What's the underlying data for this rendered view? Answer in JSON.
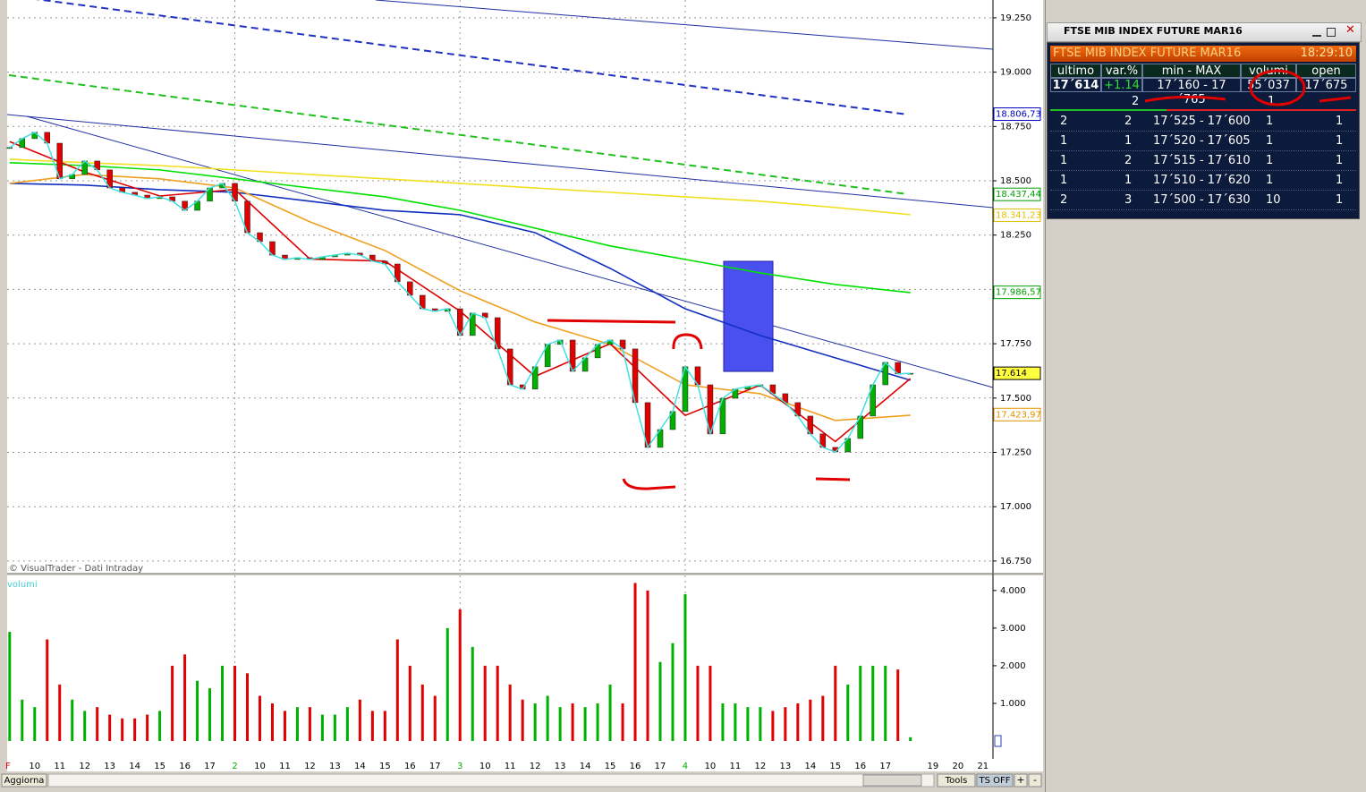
{
  "chart_data": {
    "type": "candlestick",
    "watermark": "© VisualTrader - Dati Intraday",
    "volume_label": "volumi",
    "xlim": [
      -1.1,
      38.3
    ],
    "xticks": [
      {
        "value": -1.07,
        "label": "F",
        "color": "#e00000"
      },
      {
        "value": 0,
        "label": "10"
      },
      {
        "value": 1,
        "label": "11"
      },
      {
        "value": 2,
        "label": "12"
      },
      {
        "value": 3,
        "label": "13"
      },
      {
        "value": 4,
        "label": "14"
      },
      {
        "value": 5,
        "label": "15"
      },
      {
        "value": 6,
        "label": "16"
      },
      {
        "value": 7,
        "label": "17"
      },
      {
        "value": 8,
        "label": "2",
        "color": "#00b000"
      },
      {
        "value": 9,
        "label": "10"
      },
      {
        "value": 10,
        "label": "11"
      },
      {
        "value": 11,
        "label": "12"
      },
      {
        "value": 12,
        "label": "13"
      },
      {
        "value": 13,
        "label": "14"
      },
      {
        "value": 14,
        "label": "15"
      },
      {
        "value": 15,
        "label": "16"
      },
      {
        "value": 16,
        "label": "17"
      },
      {
        "value": 17,
        "label": "3",
        "color": "#00b000"
      },
      {
        "value": 18,
        "label": "10"
      },
      {
        "value": 19,
        "label": "11"
      },
      {
        "value": 20,
        "label": "12"
      },
      {
        "value": 21,
        "label": "13"
      },
      {
        "value": 22,
        "label": "14"
      },
      {
        "value": 23,
        "label": "15"
      },
      {
        "value": 24,
        "label": "16"
      },
      {
        "value": 25,
        "label": "17"
      },
      {
        "value": 26,
        "label": "4",
        "color": "#00b000"
      },
      {
        "value": 27,
        "label": "10"
      },
      {
        "value": 28,
        "label": "11"
      },
      {
        "value": 29,
        "label": "12"
      },
      {
        "value": 30,
        "label": "13"
      },
      {
        "value": 31,
        "label": "14"
      },
      {
        "value": 32,
        "label": "15"
      },
      {
        "value": 33,
        "label": "16"
      },
      {
        "value": 34,
        "label": "17"
      },
      {
        "value": 35.9,
        "label": "19"
      },
      {
        "value": 36.9,
        "label": "20"
      },
      {
        "value": 37.9,
        "label": "21"
      }
    ],
    "ylim": [
      16696,
      19332
    ],
    "yticks": [
      {
        "value": 19250,
        "label": "19.250"
      },
      {
        "value": 19000,
        "label": "19.000"
      },
      {
        "value": 18750,
        "label": "18.750"
      },
      {
        "value": 18500,
        "label": "18.500"
      },
      {
        "value": 18250,
        "label": "18.250"
      },
      {
        "value": 18000,
        "label": "18.000"
      },
      {
        "value": 17750,
        "label": "17.750"
      },
      {
        "value": 17500,
        "label": "17.500"
      },
      {
        "value": 17250,
        "label": "17.250"
      },
      {
        "value": 17000,
        "label": "17.000"
      },
      {
        "value": 16750,
        "label": "16.750"
      }
    ],
    "price_labels": [
      {
        "value": 18806.73,
        "label": "18.806,73",
        "color": "#0000c0"
      },
      {
        "value": 18437.44,
        "label": "18.437,44",
        "color": "#00a000"
      },
      {
        "value": 18341.23,
        "label": "18.341,23",
        "color": "#e0c000"
      },
      {
        "value": 17986.57,
        "label": "17.986,57",
        "color": "#00a000"
      },
      {
        "value": 17614,
        "label": "17.614",
        "color": "#000000"
      },
      {
        "value": 17423.97,
        "label": "17.423,97",
        "color": "#e09000"
      }
    ],
    "up_color": "#00b000",
    "down_color": "#e00000",
    "close_line_color": "#40e0e0",
    "x": [
      -1,
      -0.5,
      0,
      0.5,
      1,
      1.5,
      2,
      2.5,
      3,
      3.5,
      4,
      4.5,
      5,
      5.5,
      6,
      6.5,
      7,
      7.5,
      8,
      8.5,
      9,
      9.5,
      10,
      10.5,
      11,
      11.5,
      12,
      12.5,
      13,
      13.5,
      14,
      14.5,
      15,
      15.5,
      16,
      16.5,
      17,
      17.5,
      18,
      18.5,
      19,
      19.5,
      20,
      20.5,
      21,
      21.5,
      22,
      22.5,
      23,
      23.5,
      24,
      24.5,
      25,
      25.5,
      26,
      26.5,
      27,
      27.5,
      28,
      28.5,
      29,
      29.5,
      30,
      30.5,
      31,
      31.5,
      32,
      32.5,
      33,
      33.5,
      34,
      34.5,
      35
    ],
    "close": [
      18653,
      18694,
      18723,
      18673,
      18509,
      18529,
      18591,
      18550,
      18467,
      18447,
      18434,
      18418,
      18426,
      18406,
      18364,
      18406,
      18467,
      18488,
      18406,
      18261,
      18220,
      18158,
      18138,
      18146,
      18138,
      18150,
      18158,
      18167,
      18158,
      18130,
      18117,
      18035,
      17973,
      17911,
      17899,
      17911,
      17788,
      17891,
      17870,
      17726,
      17561,
      17541,
      17644,
      17747,
      17767,
      17623,
      17685,
      17747,
      17767,
      17726,
      17479,
      17273,
      17355,
      17438,
      17644,
      17561,
      17335,
      17499,
      17541,
      17553,
      17561,
      17520,
      17479,
      17417,
      17335,
      17273,
      17252,
      17314,
      17417,
      17561,
      17664,
      17611,
      17614
    ],
    "volume": [
      2900,
      1100,
      900,
      2700,
      1500,
      1100,
      800,
      900,
      700,
      600,
      600,
      700,
      800,
      2000,
      2300,
      1600,
      1400,
      2000,
      2000,
      1800,
      1200,
      1000,
      800,
      900,
      900,
      700,
      700,
      900,
      1100,
      800,
      800,
      2700,
      2000,
      1500,
      1200,
      3000,
      3500,
      2500,
      2000,
      2000,
      1500,
      1100,
      1000,
      1200,
      900,
      1000,
      900,
      1000,
      1500,
      1000,
      4200,
      4000,
      2100,
      2600,
      3900,
      2000,
      2000,
      1000,
      1000,
      900,
      900,
      800,
      900,
      1000,
      1100,
      1200,
      2000,
      1500,
      2000,
      2000,
      2000,
      1900,
      100
    ],
    "vlim": [
      0,
      4400
    ],
    "vticks": [
      {
        "value": 4000,
        "label": "4.000"
      },
      {
        "value": 3000,
        "label": "3.000"
      },
      {
        "value": 2000,
        "label": "2.000"
      },
      {
        "value": 1000,
        "label": "1.000"
      }
    ],
    "ma_x": [
      -1,
      2,
      5,
      8,
      11,
      14,
      17,
      20,
      23,
      26,
      29,
      32,
      35
    ],
    "moving_averages": [
      {
        "color": "#00e000",
        "values": [
          18583,
          18570,
          18550,
          18509,
          18467,
          18426,
          18364,
          18282,
          18200,
          18138,
          18076,
          18023,
          17985
        ]
      },
      {
        "color": "#f0e020",
        "values": [
          18599,
          18583,
          18570,
          18550,
          18529,
          18509,
          18488,
          18467,
          18447,
          18426,
          18406,
          18377,
          18344
        ]
      },
      {
        "color": "#1030c0",
        "values": [
          18488,
          18480,
          18459,
          18447,
          18406,
          18364,
          18344,
          18261,
          18097,
          17911,
          17788,
          17685,
          17582
        ]
      },
      {
        "color": "#f0a020",
        "values": [
          18488,
          18529,
          18509,
          18467,
          18311,
          18179,
          17994,
          17850,
          17747,
          17561,
          17520,
          17397,
          17421
        ]
      },
      {
        "color": "#e00000",
        "values": [
          18680,
          18540,
          18430,
          18460,
          18140,
          18130,
          17900,
          17600,
          17750,
          17420,
          17560,
          17300,
          17590
        ]
      }
    ]
  },
  "toolbar": {
    "refresh": "Aggiorna",
    "tools": "Tools",
    "ts": "TS OFF",
    "plus": "+",
    "minus": "-"
  },
  "window": {
    "title": "FTSE MIB INDEX FUTURE MAR16"
  },
  "quote": {
    "header": "FTSE MIB INDEX FUTURE MAR16",
    "time": "18:29:10",
    "columns": [
      "ultimo",
      "var.%",
      "min - MAX",
      "volumi",
      "open"
    ],
    "values": [
      "17´614",
      "+1.14",
      "17´160 - 17´765",
      "55´037",
      "17´675"
    ],
    "summary": [
      "2",
      "1"
    ]
  },
  "book": {
    "rows": [
      [
        "2",
        "2",
        "17´525 - 17´600",
        "1",
        "1"
      ],
      [
        "1",
        "1",
        "17´520 - 17´605",
        "1",
        "1"
      ],
      [
        "1",
        "2",
        "17´515 - 17´610",
        "1",
        "1"
      ],
      [
        "1",
        "1",
        "17´510 - 17´620",
        "1",
        "1"
      ],
      [
        "2",
        "3",
        "17´500 - 17´630",
        "10",
        "1"
      ]
    ]
  }
}
